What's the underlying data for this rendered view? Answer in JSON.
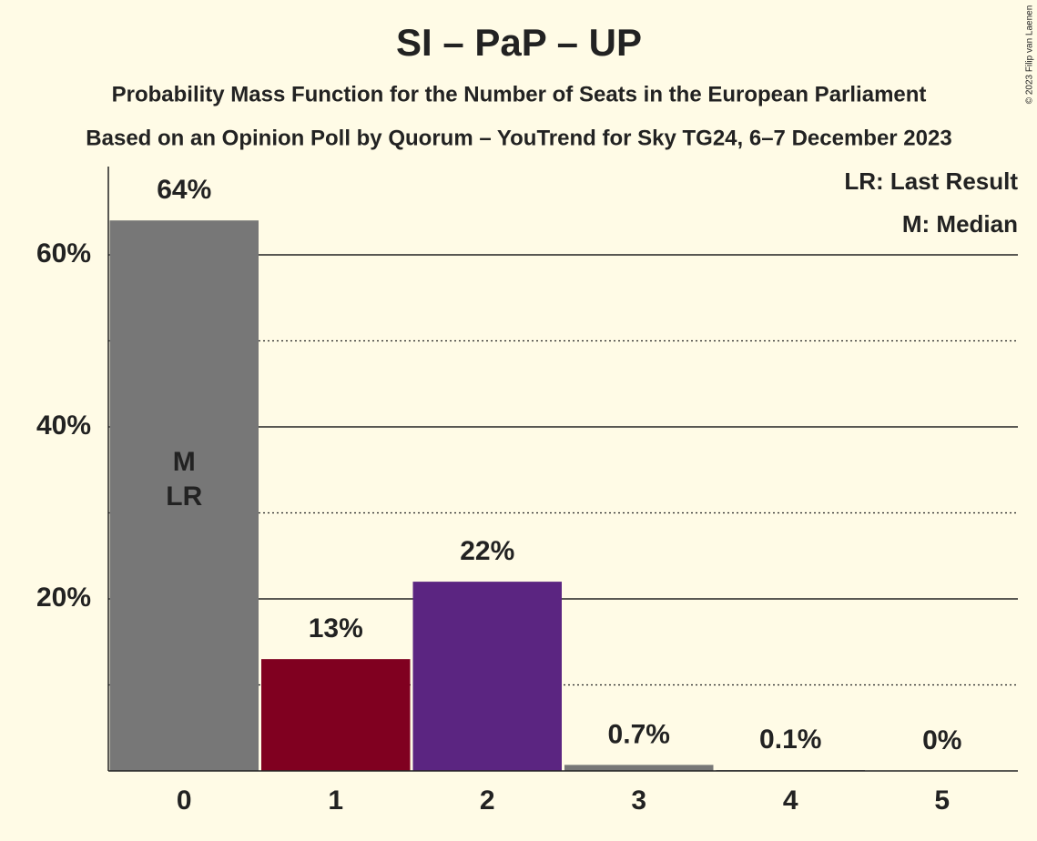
{
  "chart_data": {
    "type": "bar",
    "title": "SI – PaP – UP",
    "subtitle": "Probability Mass Function for the Number of Seats in the European Parliament",
    "subtitle2": "Based on an Opinion Poll by Quorum – YouTrend for Sky TG24, 6–7 December 2023",
    "categories": [
      "0",
      "1",
      "2",
      "3",
      "4",
      "5"
    ],
    "values": [
      64,
      13,
      22,
      0.7,
      0.1,
      0
    ],
    "value_labels": [
      "64%",
      "13%",
      "22%",
      "0.7%",
      "0.1%",
      "0%"
    ],
    "colors": [
      "#777777",
      "#800020",
      "#5b2581",
      "#777777",
      "#777777",
      "#777777"
    ],
    "ylim": [
      0,
      70
    ],
    "yticks": [
      {
        "value": 20,
        "label": "20%"
      },
      {
        "value": 40,
        "label": "40%"
      },
      {
        "value": 60,
        "label": "60%"
      }
    ],
    "minor_gridlines": [
      10,
      30,
      50
    ],
    "grid": true,
    "bar_annotations": [
      {
        "index": 0,
        "lines": [
          "M",
          "LR"
        ]
      }
    ],
    "legend": [
      "LR: Last Result",
      "M: Median"
    ],
    "legend_position": "upper right",
    "credit": "© 2023 Filip van Laenen"
  }
}
